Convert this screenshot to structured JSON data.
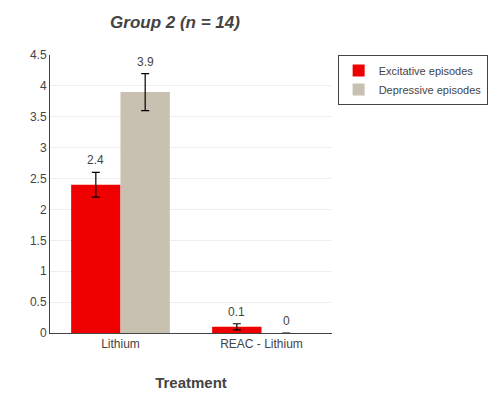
{
  "chart_data": {
    "type": "bar",
    "title": "Group 2 (n = 14)",
    "xlabel": "Treatment",
    "categories": [
      "Lithium",
      "REAC - Lithium"
    ],
    "series": [
      {
        "name": "Excitative episodes",
        "color": "#ee0000",
        "values": [
          2.4,
          0.1
        ],
        "errors": [
          0.2,
          0.05
        ]
      },
      {
        "name": "Depressive episodes",
        "color": "#c8c0b0",
        "values": [
          3.9,
          0.0
        ],
        "errors": [
          0.3,
          0.0
        ],
        "value_labels": [
          "3.9",
          "0"
        ]
      }
    ],
    "data_labels": true,
    "ylim": [
      0,
      4.5
    ],
    "yticks": [
      0,
      0.5,
      1,
      1.5,
      2,
      2.5,
      3,
      3.5,
      4,
      4.5
    ],
    "grid": true,
    "legend": "upper right"
  }
}
